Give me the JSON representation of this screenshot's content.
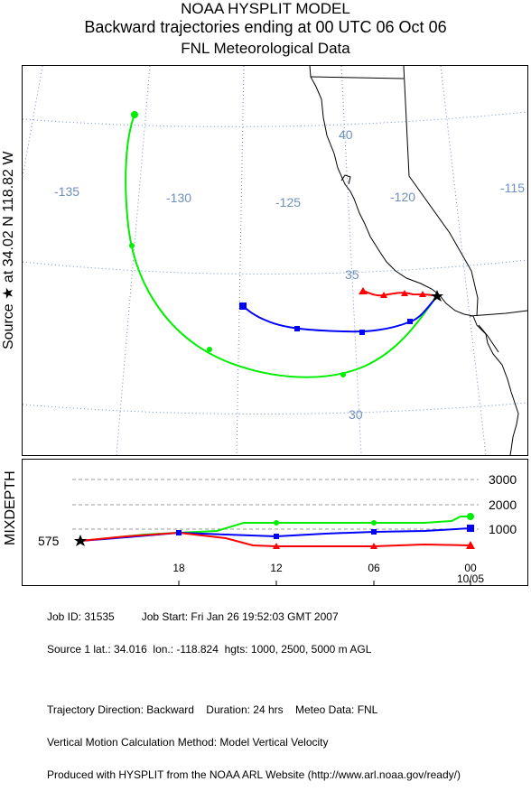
{
  "header": {
    "title_line1": "NOAA HYSPLIT MODEL",
    "title_line2": "Backward trajectories ending at 00 UTC 06 Oct 06",
    "title_line3": "FNL  Meteorological Data"
  },
  "side_label": "Source ★ at   34.02 N  118.82 W",
  "map": {
    "lon_labels": [
      "-135",
      "-130",
      "-125",
      "-120",
      "-115"
    ],
    "lat_labels": [
      "40",
      "35",
      "30"
    ],
    "colors": {
      "graticule": "#6f8fbf",
      "coast": "#000000"
    },
    "source_marker": "star-icon"
  },
  "trajectories": [
    {
      "color": "#ff0000",
      "marker": "triangle",
      "level_label": "1000"
    },
    {
      "color": "#0000ff",
      "marker": "square",
      "level_label": "2500"
    },
    {
      "color": "#00ee00",
      "marker": "circle",
      "level_label": "5000"
    }
  ],
  "mixdepth_panel": {
    "ylabel": "MIXDEPTH",
    "start_height_label": "575",
    "height_labels": [
      "3000",
      "2000",
      "1000"
    ],
    "time_labels": [
      "18",
      "12",
      "06",
      "00"
    ],
    "date_label": "10/05"
  },
  "footer": {
    "line1": "Job ID: 31535         Job Start: Fri Jan 26 19:52:03 GMT 2007",
    "line2": "Source 1 lat.: 34.016  lon.: -118.824  hgts: 1000, 2500, 5000 m AGL",
    "line3": "Trajectory Direction: Backward    Duration: 24 hrs    Meteo Data: FNL",
    "line4": "Vertical Motion Calculation Method: Model Vertical Velocity",
    "line5": "Produced with HYSPLIT from the NOAA ARL Website (http://www.arl.noaa.gov/ready/)"
  }
}
